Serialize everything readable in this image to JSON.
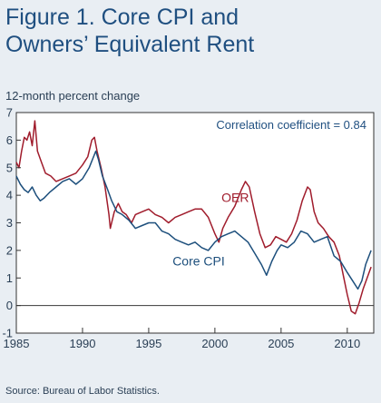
{
  "figure": {
    "title_line1": "Figure 1. Core CPI and",
    "title_line2": "Owners’ Equivalent Rent",
    "source": "Source: Bureau of Labor Statistics."
  },
  "colors": {
    "background": "#e9eef3",
    "title": "#1f4f80",
    "oer": "#a01c2c",
    "core_cpi": "#1d4f7c",
    "zero_line": "#3a3a3a"
  },
  "chart_data": {
    "type": "line",
    "ylabel": "12-month percent change",
    "xlim": [
      1985,
      2012
    ],
    "ylim": [
      -1,
      7
    ],
    "x_ticks": [
      1985,
      1990,
      1995,
      2000,
      2005,
      2010
    ],
    "y_ticks": [
      -1,
      0,
      1,
      2,
      3,
      4,
      5,
      6,
      7
    ],
    "annotation": "Correlation coefficient = 0.84",
    "grid": false,
    "series": [
      {
        "name": "OER",
        "color": "#a01c2c",
        "points": [
          [
            1985.0,
            5.2
          ],
          [
            1985.2,
            5.0
          ],
          [
            1985.4,
            5.6
          ],
          [
            1985.6,
            6.1
          ],
          [
            1985.8,
            6.0
          ],
          [
            1986.0,
            6.3
          ],
          [
            1986.2,
            5.8
          ],
          [
            1986.4,
            6.7
          ],
          [
            1986.6,
            5.6
          ],
          [
            1986.9,
            5.2
          ],
          [
            1987.2,
            4.8
          ],
          [
            1987.6,
            4.7
          ],
          [
            1988.0,
            4.5
          ],
          [
            1988.5,
            4.6
          ],
          [
            1989.0,
            4.7
          ],
          [
            1989.5,
            4.8
          ],
          [
            1990.0,
            5.1
          ],
          [
            1990.4,
            5.4
          ],
          [
            1990.7,
            6.0
          ],
          [
            1990.9,
            6.1
          ],
          [
            1991.1,
            5.6
          ],
          [
            1991.4,
            5.0
          ],
          [
            1991.7,
            4.3
          ],
          [
            1992.0,
            3.3
          ],
          [
            1992.1,
            2.8
          ],
          [
            1992.4,
            3.4
          ],
          [
            1992.7,
            3.7
          ],
          [
            1993.0,
            3.4
          ],
          [
            1993.3,
            3.3
          ],
          [
            1993.7,
            3.0
          ],
          [
            1994.0,
            3.3
          ],
          [
            1994.5,
            3.4
          ],
          [
            1995.0,
            3.5
          ],
          [
            1995.5,
            3.3
          ],
          [
            1996.0,
            3.2
          ],
          [
            1996.5,
            3.0
          ],
          [
            1997.0,
            3.2
          ],
          [
            1997.5,
            3.3
          ],
          [
            1998.0,
            3.4
          ],
          [
            1998.5,
            3.5
          ],
          [
            1999.0,
            3.5
          ],
          [
            1999.5,
            3.2
          ],
          [
            2000.0,
            2.6
          ],
          [
            2000.3,
            2.3
          ],
          [
            2000.6,
            2.8
          ],
          [
            2001.0,
            3.2
          ],
          [
            2001.5,
            3.6
          ],
          [
            2002.0,
            4.2
          ],
          [
            2002.3,
            4.5
          ],
          [
            2002.6,
            4.3
          ],
          [
            2003.0,
            3.4
          ],
          [
            2003.4,
            2.6
          ],
          [
            2003.8,
            2.1
          ],
          [
            2004.2,
            2.2
          ],
          [
            2004.6,
            2.5
          ],
          [
            2005.0,
            2.4
          ],
          [
            2005.4,
            2.3
          ],
          [
            2005.8,
            2.6
          ],
          [
            2006.2,
            3.1
          ],
          [
            2006.6,
            3.8
          ],
          [
            2007.0,
            4.3
          ],
          [
            2007.2,
            4.2
          ],
          [
            2007.5,
            3.4
          ],
          [
            2007.8,
            3.0
          ],
          [
            2008.2,
            2.8
          ],
          [
            2008.6,
            2.5
          ],
          [
            2009.0,
            2.3
          ],
          [
            2009.4,
            1.8
          ],
          [
            2009.7,
            1.1
          ],
          [
            2010.0,
            0.4
          ],
          [
            2010.3,
            -0.2
          ],
          [
            2010.6,
            -0.3
          ],
          [
            2010.9,
            0.1
          ],
          [
            2011.2,
            0.6
          ],
          [
            2011.5,
            1.0
          ],
          [
            2011.8,
            1.4
          ]
        ]
      },
      {
        "name": "Core CPI",
        "color": "#1d4f7c",
        "points": [
          [
            1985.0,
            4.7
          ],
          [
            1985.3,
            4.4
          ],
          [
            1985.6,
            4.2
          ],
          [
            1985.9,
            4.1
          ],
          [
            1986.2,
            4.3
          ],
          [
            1986.5,
            4.0
          ],
          [
            1986.8,
            3.8
          ],
          [
            1987.1,
            3.9
          ],
          [
            1987.5,
            4.1
          ],
          [
            1988.0,
            4.3
          ],
          [
            1988.5,
            4.5
          ],
          [
            1989.0,
            4.6
          ],
          [
            1989.5,
            4.4
          ],
          [
            1990.0,
            4.6
          ],
          [
            1990.5,
            5.0
          ],
          [
            1991.0,
            5.6
          ],
          [
            1991.2,
            5.3
          ],
          [
            1991.5,
            4.7
          ],
          [
            1991.9,
            4.2
          ],
          [
            1992.2,
            3.8
          ],
          [
            1992.6,
            3.4
          ],
          [
            1993.0,
            3.3
          ],
          [
            1993.5,
            3.1
          ],
          [
            1994.0,
            2.8
          ],
          [
            1994.5,
            2.9
          ],
          [
            1995.0,
            3.0
          ],
          [
            1995.5,
            3.0
          ],
          [
            1996.0,
            2.7
          ],
          [
            1996.5,
            2.6
          ],
          [
            1997.0,
            2.4
          ],
          [
            1997.5,
            2.3
          ],
          [
            1998.0,
            2.2
          ],
          [
            1998.5,
            2.3
          ],
          [
            1999.0,
            2.1
          ],
          [
            1999.5,
            2.0
          ],
          [
            2000.0,
            2.3
          ],
          [
            2000.5,
            2.5
          ],
          [
            2001.0,
            2.6
          ],
          [
            2001.5,
            2.7
          ],
          [
            2002.0,
            2.5
          ],
          [
            2002.5,
            2.3
          ],
          [
            2003.0,
            1.9
          ],
          [
            2003.5,
            1.5
          ],
          [
            2003.9,
            1.1
          ],
          [
            2004.3,
            1.6
          ],
          [
            2004.7,
            2.0
          ],
          [
            2005.0,
            2.2
          ],
          [
            2005.5,
            2.1
          ],
          [
            2006.0,
            2.3
          ],
          [
            2006.5,
            2.7
          ],
          [
            2007.0,
            2.6
          ],
          [
            2007.5,
            2.3
          ],
          [
            2008.0,
            2.4
          ],
          [
            2008.5,
            2.5
          ],
          [
            2009.0,
            1.8
          ],
          [
            2009.5,
            1.6
          ],
          [
            2010.0,
            1.2
          ],
          [
            2010.4,
            0.9
          ],
          [
            2010.8,
            0.6
          ],
          [
            2011.1,
            0.9
          ],
          [
            2011.4,
            1.5
          ],
          [
            2011.8,
            2.0
          ]
        ]
      }
    ],
    "series_labels": [
      {
        "name": "OER",
        "x": 2000.5,
        "y": 3.75
      },
      {
        "name": "Core CPI",
        "x": 1996.8,
        "y": 1.45
      }
    ]
  }
}
